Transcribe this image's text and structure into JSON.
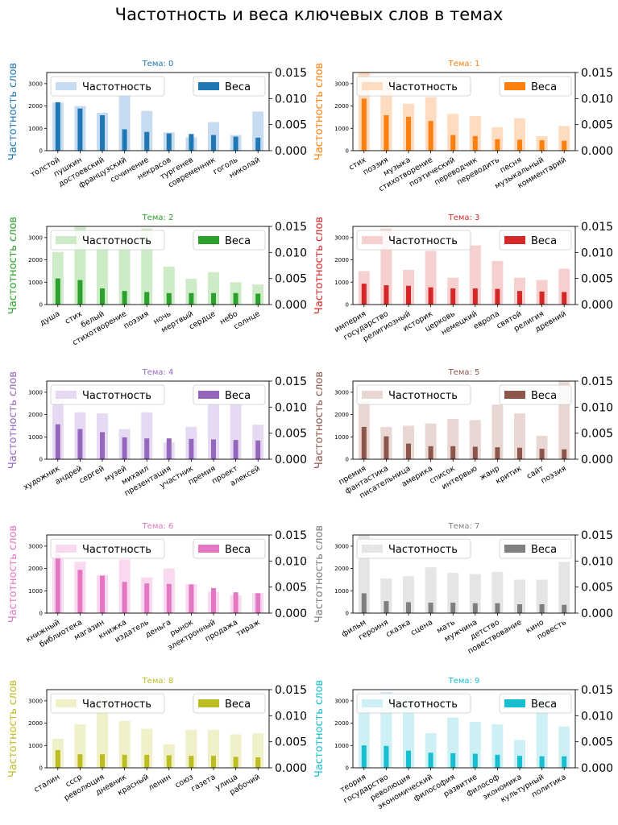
{
  "title": "Частотность и веса ключевых слов в темах",
  "legend_labels": {
    "frequency": "Частотность",
    "weights": "Веса"
  },
  "chart_data": [
    {
      "type": "bar",
      "title": "Тема: 0",
      "color": "#1f77b4",
      "light_color": "#c6dbef",
      "ylabel_left": "Частотность слов",
      "categories": [
        "толстой",
        "пушкин",
        "достоевский",
        "французский",
        "сочинение",
        "некрасов",
        "тургенев",
        "современник",
        "гоголь",
        "николай"
      ],
      "frequency": [
        2150,
        2000,
        1700,
        2500,
        1780,
        820,
        600,
        1280,
        700,
        1750
      ],
      "weights": [
        0.0093,
        0.0081,
        0.0068,
        0.0041,
        0.0036,
        0.0033,
        0.0032,
        0.003,
        0.0027,
        0.0025
      ],
      "left_ticks": [
        0,
        1000,
        2000,
        3000
      ],
      "right_ticks": [
        "0.000",
        "0.005",
        "0.010",
        "0.015"
      ],
      "ylim_left": [
        0,
        3500
      ],
      "ylim_right": [
        0,
        0.015
      ],
      "legend": "top"
    },
    {
      "type": "bar",
      "title": "Тема: 1",
      "color": "#ff7f0e",
      "light_color": "#ffdcbf",
      "ylabel_left": "Частотность слов",
      "categories": [
        "стих",
        "поэзия",
        "музыка",
        "стихотворение",
        "поэтический",
        "переводчик",
        "переводить",
        "песня",
        "музыкальный",
        "комментарий"
      ],
      "frequency": [
        3500,
        3200,
        2100,
        2400,
        1650,
        1550,
        1050,
        1450,
        650,
        1100
      ],
      "weights": [
        0.01,
        0.0068,
        0.0065,
        0.0057,
        0.003,
        0.0028,
        0.0022,
        0.0021,
        0.002,
        0.0019
      ],
      "left_ticks": [
        0,
        1000,
        2000,
        3000
      ],
      "right_ticks": [
        "0.000",
        "0.005",
        "0.010",
        "0.015"
      ],
      "ylim_left": [
        0,
        3500
      ],
      "ylim_right": [
        0,
        0.015
      ],
      "legend": "top"
    },
    {
      "type": "bar",
      "title": "Тема: 2",
      "color": "#2ca02c",
      "light_color": "#cdebc7",
      "ylabel_left": "Частотность слов",
      "categories": [
        "душа",
        "стих",
        "белый",
        "стихотворение",
        "поэзия",
        "ночь",
        "мертвый",
        "сердце",
        "небо",
        "солнце"
      ],
      "frequency": [
        2350,
        3500,
        2800,
        2700,
        3400,
        1700,
        1150,
        1450,
        1000,
        900
      ],
      "weights": [
        0.005,
        0.0047,
        0.0031,
        0.0026,
        0.0024,
        0.0022,
        0.0022,
        0.0022,
        0.0022,
        0.0021
      ],
      "left_ticks": [
        0,
        1000,
        2000,
        3000
      ],
      "right_ticks": [
        "0.000",
        "0.005",
        "0.010",
        "0.015"
      ],
      "ylim_left": [
        0,
        3500
      ],
      "ylim_right": [
        0,
        0.015
      ],
      "legend": "top"
    },
    {
      "type": "bar",
      "title": "Тема: 3",
      "color": "#d62728",
      "light_color": "#f6cfcf",
      "ylabel_left": "Частотность слов",
      "categories": [
        "империя",
        "государство",
        "религиозный",
        "историк",
        "церковь",
        "немецкий",
        "европа",
        "святой",
        "религия",
        "древний"
      ],
      "frequency": [
        1500,
        3400,
        1550,
        2400,
        1200,
        2650,
        1950,
        1200,
        1100,
        1600
      ],
      "weights": [
        0.004,
        0.0037,
        0.0036,
        0.0033,
        0.0031,
        0.0031,
        0.003,
        0.0026,
        0.0025,
        0.0024
      ],
      "left_ticks": [
        0,
        1000,
        2000,
        3000
      ],
      "right_ticks": [
        "0.000",
        "0.005",
        "0.010",
        "0.015"
      ],
      "ylim_left": [
        0,
        3500
      ],
      "ylim_right": [
        0,
        0.015
      ],
      "legend": "top"
    },
    {
      "type": "bar",
      "title": "Тема: 4",
      "color": "#9467bd",
      "light_color": "#e5daf1",
      "ylabel_left": "Частотность слов",
      "categories": [
        "художник",
        "андрей",
        "сергей",
        "музей",
        "михаил",
        "презентация",
        "участник",
        "премия",
        "проект",
        "алексей"
      ],
      "frequency": [
        3100,
        2100,
        2050,
        1350,
        2100,
        750,
        1450,
        2500,
        2500,
        1550
      ],
      "weights": [
        0.0067,
        0.0058,
        0.0052,
        0.0042,
        0.004,
        0.004,
        0.0039,
        0.0038,
        0.0037,
        0.0036
      ],
      "left_ticks": [
        0,
        1000,
        2000,
        3000
      ],
      "right_ticks": [
        "0.000",
        "0.005",
        "0.010",
        "0.015"
      ],
      "ylim_left": [
        0,
        3500
      ],
      "ylim_right": [
        0,
        0.015
      ],
      "legend": "top"
    },
    {
      "type": "bar",
      "title": "Тема: 5",
      "color": "#8c564b",
      "light_color": "#e9d7d4",
      "ylabel_left": "Частотность слов",
      "categories": [
        "премия",
        "фантастика",
        "писательница",
        "америка",
        "список",
        "интервью",
        "жанр",
        "критик",
        "сайт",
        "поэзия"
      ],
      "frequency": [
        2600,
        1450,
        1500,
        1600,
        1800,
        1750,
        2450,
        2050,
        1050,
        3500
      ],
      "weights": [
        0.0062,
        0.0044,
        0.003,
        0.0025,
        0.0025,
        0.0024,
        0.0023,
        0.0022,
        0.002,
        0.0019
      ],
      "left_ticks": [
        0,
        1000,
        2000,
        3000
      ],
      "right_ticks": [
        "0.000",
        "0.005",
        "0.010",
        "0.015"
      ],
      "ylim_left": [
        0,
        3500
      ],
      "ylim_right": [
        0,
        0.015
      ],
      "legend": "top"
    },
    {
      "type": "bar",
      "title": "Тема: 6",
      "color": "#e377c2",
      "light_color": "#f9d9ef",
      "ylabel_left": "Частотность слов",
      "categories": [
        "книжный",
        "библиотека",
        "магазин",
        "книжка",
        "издатель",
        "деньга",
        "рынок",
        "электронный",
        "продажа",
        "тираж"
      ],
      "frequency": [
        2800,
        2300,
        1700,
        2400,
        1600,
        2000,
        1300,
        950,
        800,
        900
      ],
      "weights": [
        0.0112,
        0.0083,
        0.0072,
        0.006,
        0.0057,
        0.0056,
        0.0055,
        0.0048,
        0.004,
        0.0038
      ],
      "left_ticks": [
        0,
        1000,
        2000,
        3000
      ],
      "right_ticks": [
        "0.000",
        "0.005",
        "0.010",
        "0.015"
      ],
      "ylim_left": [
        0,
        3500
      ],
      "ylim_right": [
        0,
        0.015
      ],
      "legend": "top"
    },
    {
      "type": "bar",
      "title": "Тема: 7",
      "color": "#7f7f7f",
      "light_color": "#e5e5e5",
      "ylabel_left": "Частотность слов",
      "categories": [
        "фильм",
        "героиня",
        "сказка",
        "сцена",
        "мать",
        "мужчина",
        "детство",
        "повествование",
        "кино",
        "повесть"
      ],
      "frequency": [
        3500,
        1550,
        1650,
        2050,
        1800,
        1750,
        1850,
        1500,
        1500,
        2300
      ],
      "weights": [
        0.0038,
        0.0023,
        0.0021,
        0.002,
        0.002,
        0.0019,
        0.0019,
        0.0017,
        0.0017,
        0.0016
      ],
      "left_ticks": [
        0,
        1000,
        2000,
        3000
      ],
      "right_ticks": [
        "0.000",
        "0.005",
        "0.010",
        "0.015"
      ],
      "ylim_left": [
        0,
        3500
      ],
      "ylim_right": [
        0,
        0.015
      ],
      "legend": "top"
    },
    {
      "type": "bar",
      "title": "Тема: 8",
      "color": "#bcbd22",
      "light_color": "#f1f1c9",
      "ylabel_left": "Частотность слов",
      "categories": [
        "сталин",
        "ссср",
        "революция",
        "дневник",
        "красный",
        "ленин",
        "союз",
        "газета",
        "улица",
        "рабочий"
      ],
      "frequency": [
        1300,
        1950,
        3300,
        2100,
        1750,
        1050,
        1700,
        1700,
        1500,
        1550
      ],
      "weights": [
        0.0034,
        0.0026,
        0.0026,
        0.0025,
        0.0025,
        0.0024,
        0.0023,
        0.0023,
        0.0021,
        0.002
      ],
      "left_ticks": [
        0,
        1000,
        2000,
        3000
      ],
      "right_ticks": [
        "0.000",
        "0.005",
        "0.010",
        "0.015"
      ],
      "ylim_left": [
        0,
        3500
      ],
      "ylim_right": [
        0,
        0.015
      ],
      "legend": "top"
    },
    {
      "type": "bar",
      "title": "Тема: 9",
      "color": "#17becf",
      "light_color": "#ccf0f4",
      "ylabel_left": "Частотность слов",
      "categories": [
        "теория",
        "государство",
        "революция",
        "экономический",
        "философия",
        "развитие",
        "философ",
        "экономика",
        "культурный",
        "политика"
      ],
      "frequency": [
        3000,
        3400,
        3200,
        1550,
        2250,
        2050,
        1950,
        1250,
        3300,
        1850
      ],
      "weights": [
        0.0043,
        0.0042,
        0.0033,
        0.0029,
        0.0028,
        0.0027,
        0.0025,
        0.0023,
        0.0022,
        0.0022
      ],
      "left_ticks": [
        0,
        1000,
        2000,
        3000
      ],
      "right_ticks": [
        "0.000",
        "0.005",
        "0.010",
        "0.015"
      ],
      "ylim_left": [
        0,
        3500
      ],
      "ylim_right": [
        0,
        0.015
      ],
      "legend": "top"
    }
  ]
}
